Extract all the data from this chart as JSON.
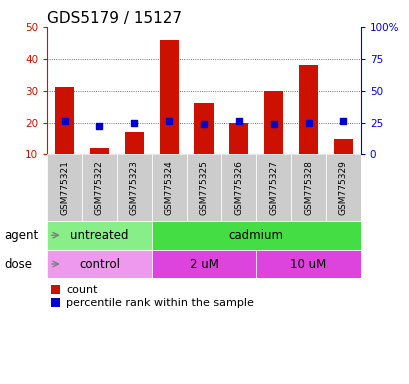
{
  "title": "GDS5179 / 15127",
  "samples": [
    "GSM775321",
    "GSM775322",
    "GSM775323",
    "GSM775324",
    "GSM775325",
    "GSM775326",
    "GSM775327",
    "GSM775328",
    "GSM775329"
  ],
  "counts": [
    31,
    12,
    17,
    46,
    26,
    20,
    30,
    38,
    15
  ],
  "percentile_ranks": [
    26,
    22,
    25,
    26,
    24,
    26,
    24,
    25,
    26
  ],
  "bar_bottom": 10,
  "left_ylim": [
    10,
    50
  ],
  "right_ylim": [
    0,
    100
  ],
  "left_yticks": [
    10,
    20,
    30,
    40,
    50
  ],
  "right_yticks": [
    0,
    25,
    50,
    75,
    100
  ],
  "right_yticklabels": [
    "0",
    "25",
    "50",
    "75",
    "100%"
  ],
  "bar_color": "#cc1100",
  "dot_color": "#0000cc",
  "grid_dotted_color": "#555555",
  "bg_color": "#ffffff",
  "sample_label_bg": "#cccccc",
  "agent_groups": [
    {
      "label": "untreated",
      "start": 0,
      "end": 3,
      "color": "#88ee88"
    },
    {
      "label": "cadmium",
      "start": 3,
      "end": 9,
      "color": "#44dd44"
    }
  ],
  "dose_groups": [
    {
      "label": "control",
      "start": 0,
      "end": 3,
      "color": "#ee99ee"
    },
    {
      "label": "2 uM",
      "start": 3,
      "end": 6,
      "color": "#dd44dd"
    },
    {
      "label": "10 uM",
      "start": 6,
      "end": 9,
      "color": "#dd44dd"
    }
  ],
  "row_label_agent": "agent",
  "row_label_dose": "dose",
  "legend_count_label": "count",
  "legend_pct_label": "percentile rank within the sample",
  "title_fontsize": 11,
  "tick_fontsize": 7.5,
  "sample_fontsize": 6.5,
  "label_fontsize": 8.5,
  "legend_fontsize": 8
}
